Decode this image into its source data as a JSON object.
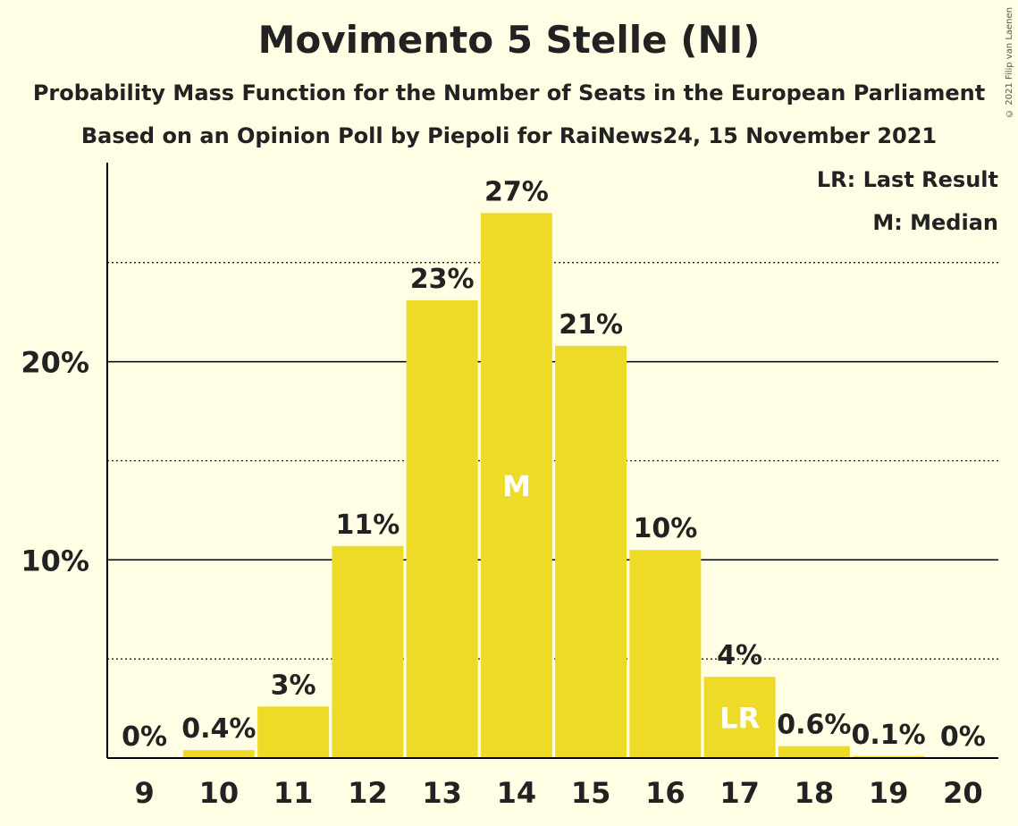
{
  "title": "Movimento 5 Stelle (NI)",
  "subtitle1": "Probability Mass Function for the Number of Seats in the European Parliament",
  "subtitle2": "Based on an Opinion Poll by Piepoli for RaiNews24, 15 November 2021",
  "copyright": "© 2021 Filip van Laenen",
  "legend": {
    "lr": "LR: Last Result",
    "m": "M: Median"
  },
  "colors": {
    "bar": "#EDDB28",
    "background": "#FFFEE4",
    "axis": "#000000",
    "text": "#222222"
  },
  "chart_data": {
    "type": "bar",
    "categories": [
      "9",
      "10",
      "11",
      "12",
      "13",
      "14",
      "15",
      "16",
      "17",
      "18",
      "19",
      "20"
    ],
    "values": [
      0,
      0.4,
      2.6,
      10.7,
      23.1,
      27.5,
      20.8,
      10.5,
      4.1,
      0.6,
      0.1,
      0
    ],
    "labels": [
      "0%",
      "0.4%",
      "3%",
      "11%",
      "23%",
      "27%",
      "21%",
      "10%",
      "4%",
      "0.6%",
      "0.1%",
      "0%"
    ],
    "markers": {
      "14": "M",
      "17": "LR"
    },
    "ylim": [
      0,
      30
    ],
    "yticks": [
      10,
      20
    ],
    "ytick_labels": [
      "10%",
      "20%"
    ],
    "dotted_gridlines": [
      5,
      15,
      25
    ],
    "legend_position": "top-right"
  }
}
